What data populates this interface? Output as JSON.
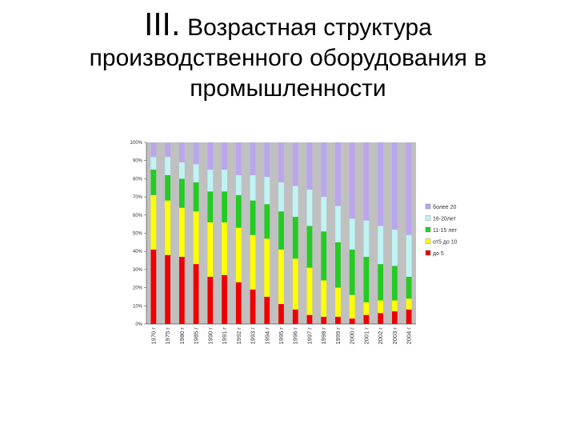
{
  "title": {
    "roman": "III.",
    "line1": "Возрастная структура",
    "line2": "производственного оборудования в",
    "line3": "промышленности"
  },
  "chart_data": {
    "type": "bar",
    "stacked": true,
    "percent": true,
    "categories": [
      "1970 г",
      "1975 г",
      "1980 г",
      "1985 г",
      "1990 г",
      "1991 г",
      "1992 г",
      "1993 г",
      "1994 г",
      "1995 г",
      "1996 г",
      "1997 г",
      "1998 г",
      "1999 г",
      "2000 г",
      "2001 г",
      "2002 г",
      "2003 г",
      "2004 г"
    ],
    "ylim": [
      0,
      100
    ],
    "yticks": [
      "0%",
      "10%",
      "20%",
      "30%",
      "40%",
      "50%",
      "60%",
      "70%",
      "80%",
      "90%",
      "100%"
    ],
    "series": [
      {
        "name": "до 5",
        "color": "#ee0000",
        "values": [
          41,
          38,
          37,
          33,
          26,
          27,
          23,
          19,
          15,
          11,
          8,
          5,
          4,
          4,
          3,
          5,
          6,
          7,
          8
        ]
      },
      {
        "name": "от5 до 10",
        "color": "#ffff00",
        "values": [
          30,
          30,
          27,
          29,
          30,
          29,
          30,
          30,
          32,
          30,
          28,
          26,
          20,
          16,
          13,
          7,
          7,
          6,
          6
        ]
      },
      {
        "name": "11-15 лет",
        "color": "#22cc22",
        "values": [
          14,
          14,
          16,
          16,
          17,
          17,
          18,
          19,
          19,
          21,
          23,
          23,
          27,
          25,
          25,
          25,
          20,
          19,
          12
        ]
      },
      {
        "name": "16-20лет",
        "color": "#bff4f4",
        "values": [
          7,
          10,
          9,
          10,
          12,
          12,
          11,
          14,
          15,
          16,
          17,
          20,
          19,
          20,
          17,
          20,
          21,
          20,
          23
        ]
      },
      {
        "name": "более 20",
        "color": "#b9a6ee",
        "values": [
          8,
          8,
          11,
          12,
          15,
          15,
          18,
          18,
          19,
          22,
          24,
          26,
          30,
          35,
          42,
          43,
          46,
          48,
          51
        ]
      }
    ],
    "legend_position": "right",
    "grid": false,
    "plot_background": "#c0c0c0"
  }
}
